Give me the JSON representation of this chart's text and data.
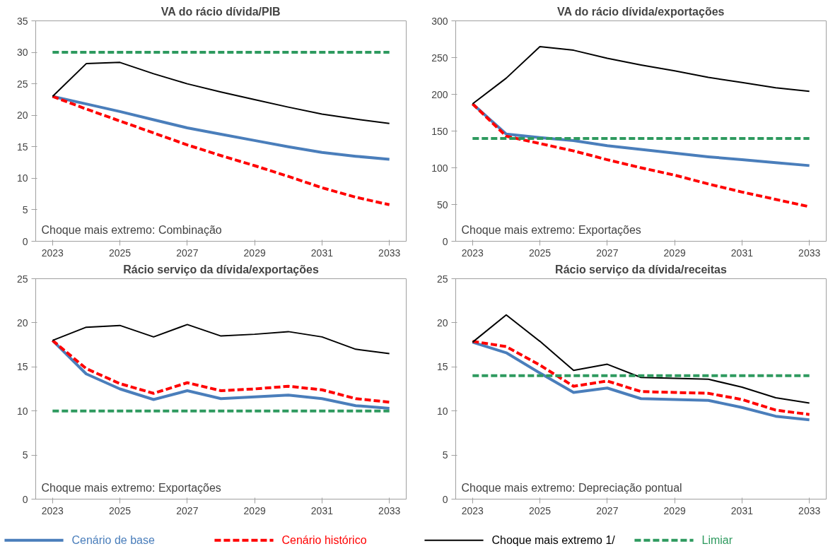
{
  "chart_data": [
    {
      "type": "line",
      "title": "VA do rácio dívida/PIB",
      "categories": [
        "2023",
        null,
        "2025",
        null,
        "2027",
        null,
        "2029",
        null,
        "2031",
        null,
        "2033"
      ],
      "ylim": [
        0,
        35
      ],
      "yticks": [
        0,
        5,
        10,
        15,
        20,
        25,
        30,
        35
      ],
      "grid": false,
      "legend": "bottom",
      "marker": "none",
      "annotations": [
        "Choque mais extremo: Combinação"
      ],
      "series": [
        {
          "name": "Cenário de base",
          "color": "#4a7ebb",
          "line_style": "solid",
          "values": [
            23,
            21.8,
            20.6,
            19.3,
            18.0,
            17.0,
            16.0,
            15.0,
            14.1,
            13.5,
            13.0
          ]
        },
        {
          "name": "Cenário histórico",
          "color": "#ff0000",
          "line_style": "dashed",
          "values": [
            23,
            21.0,
            19.1,
            17.2,
            15.3,
            13.6,
            12.0,
            10.3,
            8.5,
            7.0,
            5.8
          ]
        },
        {
          "name": "Choque mais extremo 1/",
          "color": "#000000",
          "line_style": "solid",
          "values": [
            23,
            28.2,
            28.4,
            26.6,
            25.0,
            23.7,
            22.5,
            21.3,
            20.2,
            19.4,
            18.7
          ]
        },
        {
          "name": "Limiar",
          "color": "#2e9a5f",
          "line_style": "dashed",
          "values": [
            30,
            30,
            30,
            30,
            30,
            30,
            30,
            30,
            30,
            30,
            30
          ]
        }
      ]
    },
    {
      "type": "line",
      "title": "VA do rácio dívida/exportações",
      "categories": [
        "2023",
        null,
        "2025",
        null,
        "2027",
        null,
        "2029",
        null,
        "2031",
        null,
        "2033"
      ],
      "ylim": [
        0,
        300
      ],
      "yticks": [
        0,
        50,
        100,
        150,
        200,
        250,
        300
      ],
      "grid": false,
      "marker": "none",
      "annotations": [
        "Choque mais extremo: Exportações"
      ],
      "series": [
        {
          "color": "#4a7ebb",
          "line_style": "solid",
          "values": [
            187,
            146,
            141,
            137,
            130,
            125,
            120,
            115,
            111,
            107,
            103
          ]
        },
        {
          "color": "#ff0000",
          "line_style": "dashed",
          "values": [
            187,
            143,
            133,
            123,
            111,
            100,
            90,
            78,
            67,
            57,
            47
          ]
        },
        {
          "color": "#000000",
          "line_style": "solid",
          "values": [
            187,
            222,
            265,
            260,
            249,
            240,
            232,
            223,
            216,
            209,
            204
          ]
        },
        {
          "color": "#2e9a5f",
          "line_style": "dashed",
          "values": [
            140,
            140,
            140,
            140,
            140,
            140,
            140,
            140,
            140,
            140,
            140
          ]
        }
      ]
    },
    {
      "type": "line",
      "title": "Rácio serviço da dívida/exportações",
      "categories": [
        "2023",
        null,
        "2025",
        null,
        "2027",
        null,
        "2029",
        null,
        "2031",
        null,
        "2033"
      ],
      "ylim": [
        0,
        25
      ],
      "yticks": [
        0,
        5,
        10,
        15,
        20,
        25
      ],
      "grid": false,
      "marker": "none",
      "annotations": [
        "Choque mais extremo: Exportações"
      ],
      "series": [
        {
          "color": "#4a7ebb",
          "line_style": "solid",
          "values": [
            18,
            14.2,
            12.5,
            11.3,
            12.3,
            11.4,
            11.6,
            11.8,
            11.4,
            10.6,
            10.3
          ]
        },
        {
          "color": "#ff0000",
          "line_style": "dashed",
          "values": [
            18,
            14.8,
            13.1,
            12.0,
            13.2,
            12.3,
            12.5,
            12.8,
            12.4,
            11.4,
            11.0
          ]
        },
        {
          "color": "#000000",
          "line_style": "solid",
          "values": [
            18,
            19.5,
            19.7,
            18.4,
            19.8,
            18.5,
            18.7,
            19.0,
            18.4,
            17.0,
            16.5
          ]
        },
        {
          "color": "#2e9a5f",
          "line_style": "dashed",
          "values": [
            10,
            10,
            10,
            10,
            10,
            10,
            10,
            10,
            10,
            10,
            10
          ]
        }
      ]
    },
    {
      "type": "line",
      "title": "Rácio serviço da dívida/receitas",
      "categories": [
        "2023",
        null,
        "2025",
        null,
        "2027",
        null,
        "2029",
        null,
        "2031",
        null,
        "2033"
      ],
      "ylim": [
        0,
        25
      ],
      "yticks": [
        0,
        5,
        10,
        15,
        20,
        25
      ],
      "grid": false,
      "marker": "none",
      "annotations": [
        "Choque mais extremo: Depreciação pontual"
      ],
      "series": [
        {
          "color": "#4a7ebb",
          "line_style": "solid",
          "values": [
            17.8,
            16.6,
            14.3,
            12.1,
            12.6,
            11.4,
            11.3,
            11.2,
            10.4,
            9.4,
            9.0
          ]
        },
        {
          "color": "#ff0000",
          "line_style": "dashed",
          "values": [
            17.9,
            17.3,
            15.2,
            12.8,
            13.4,
            12.2,
            12.1,
            12.0,
            11.3,
            10.1,
            9.6
          ]
        },
        {
          "color": "#000000",
          "line_style": "solid",
          "values": [
            17.8,
            20.9,
            17.9,
            14.6,
            15.3,
            13.8,
            13.7,
            13.6,
            12.7,
            11.5,
            10.9
          ]
        },
        {
          "color": "#2e9a5f",
          "line_style": "dashed",
          "values": [
            14,
            14,
            14,
            14,
            14,
            14,
            14,
            14,
            14,
            14,
            14
          ]
        }
      ]
    }
  ]
}
